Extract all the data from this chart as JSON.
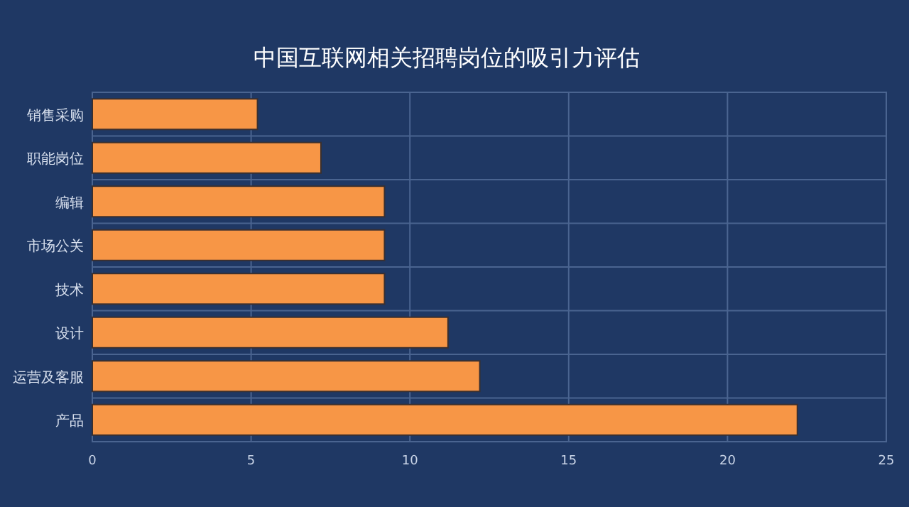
{
  "chart_data": {
    "type": "bar",
    "orientation": "horizontal",
    "title": "中国互联网相关招聘岗位的吸引力评估",
    "categories": [
      "销售采购",
      "职能岗位",
      "编辑",
      "市场公关",
      "技术",
      "设计",
      "运营及客服",
      "产品"
    ],
    "values": [
      5.2,
      7.2,
      9.2,
      9.2,
      9.2,
      11.2,
      12.2,
      22.2
    ],
    "color": "#f79646",
    "xlim": [
      0,
      25
    ],
    "xticks": [
      0,
      5,
      10,
      15,
      20,
      25
    ],
    "grid": true
  }
}
